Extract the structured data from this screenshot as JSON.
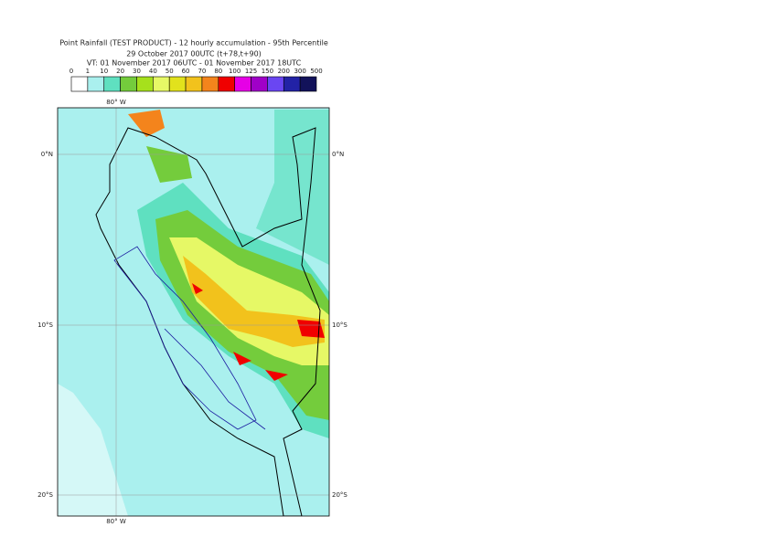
{
  "header": {
    "title": "Point Rainfall (TEST PRODUCT) - 12 hourly accumulation - 95th Percentile",
    "subtitle": "29 October 2017 00UTC (t+78,t+90)",
    "valid_time": "VT: 01 November 2017 06UTC - 01 November 2017 18UTC"
  },
  "legend": {
    "labels": [
      "0",
      "1",
      "10",
      "20",
      "30",
      "40",
      "50",
      "60",
      "70",
      "80",
      "100",
      "125",
      "150",
      "200",
      "300",
      "500"
    ],
    "colors": [
      "#ffffff",
      "#aaf0ee",
      "#5fe0c0",
      "#74cc3c",
      "#a6e01c",
      "#e6f866",
      "#e2e21c",
      "#f2c21c",
      "#f4841c",
      "#f00000",
      "#e600e6",
      "#a000c8",
      "#6a46f2",
      "#2222a6",
      "#12125a"
    ]
  },
  "map": {
    "lon_label_top": "80° W",
    "lon_label_bottom": "80° W",
    "lat_labels_left": [
      "0°N",
      "10°S",
      "20°S"
    ],
    "lat_labels_right": [
      "0°N",
      "10°S",
      "20°S"
    ]
  }
}
